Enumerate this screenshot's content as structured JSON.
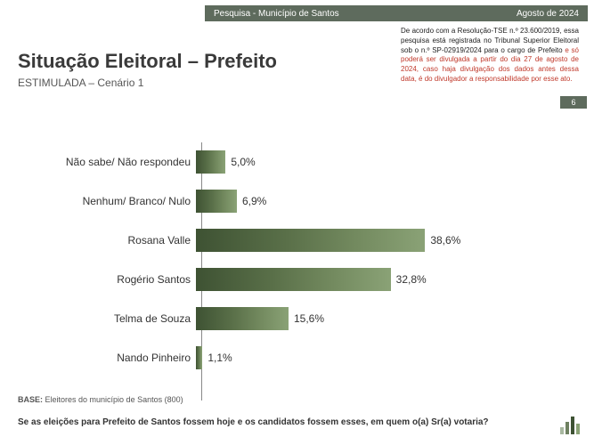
{
  "header": {
    "left": "Pesquisa - Município de Santos",
    "right": "Agosto de 2024"
  },
  "disclaimer": {
    "part1": "De acordo com a Resolução-TSE n.º 23.600/2019, essa pesquisa está registrada no Tribunal Superior Eleitoral sob o n.º SP-02919/2024 para o cargo de Prefeito ",
    "part2_red": "e só poderá ser divulgada a partir do dia 27 de agosto de 2024, caso haja divulgação dos dados antes dessa data, é do divulgador a responsabilidade por esse ato."
  },
  "page_number": "6",
  "title": "Situação Eleitoral – Prefeito",
  "subtitle": "ESTIMULADA – Cenário 1",
  "chart": {
    "type": "bar-horizontal",
    "max_scale": 45,
    "bar_gradient_from": "#3e5233",
    "bar_gradient_to": "#8aa276",
    "axis_color": "#888888",
    "label_fontsize": 12,
    "value_fontsize": 12,
    "items": [
      {
        "label": "Não sabe/ Não respondeu",
        "value": 5.0,
        "value_label": "5,0%"
      },
      {
        "label": "Nenhum/ Branco/ Nulo",
        "value": 6.9,
        "value_label": "6,9%"
      },
      {
        "label": "Rosana Valle",
        "value": 38.6,
        "value_label": "38,6%"
      },
      {
        "label": "Rogério Santos",
        "value": 32.8,
        "value_label": "32,8%"
      },
      {
        "label": "Telma de Souza",
        "value": 15.6,
        "value_label": "15,6%"
      },
      {
        "label": "Nando Pinheiro",
        "value": 1.1,
        "value_label": "1,1%"
      }
    ]
  },
  "base_label": "BASE:",
  "base_text": " Eleitores do município de Santos (800)",
  "question": "Se as eleições para Prefeito de Santos fossem hoje e os candidatos fossem esses, em quem o(a) Sr(a) votaria?",
  "colors": {
    "header_bg": "#5e6b5d",
    "header_fg": "#ffffff",
    "title_color": "#3a3a3a",
    "red": "#c0392b",
    "background": "#ffffff"
  }
}
